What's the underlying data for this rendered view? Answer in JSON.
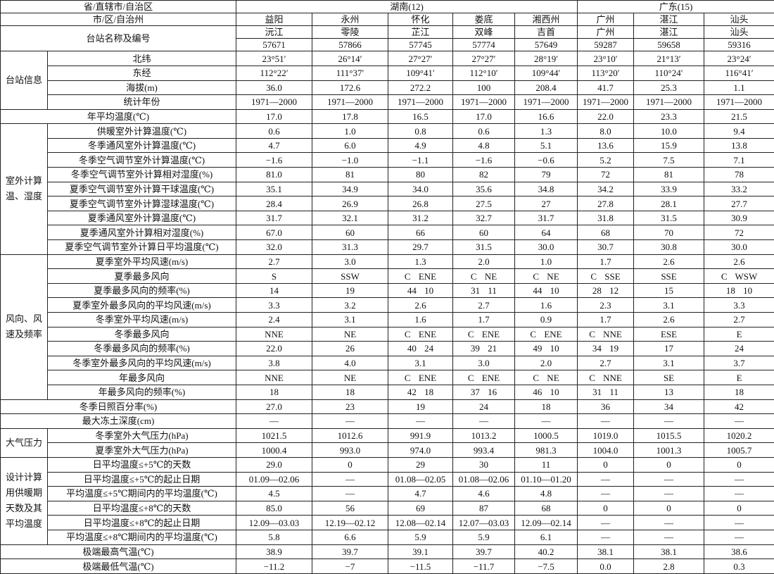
{
  "header": {
    "province_label": "省/直辖市/自治区",
    "city_label": "市/区/自治州",
    "station_label": "台站名称及编号"
  },
  "provinces": [
    {
      "name": "湖南(12)",
      "columns": [
        {
          "city": "益阳",
          "station": "沅江",
          "id": "57671"
        },
        {
          "city": "永州",
          "station": "零陵",
          "id": "57866"
        },
        {
          "city": "怀化",
          "station": "芷江",
          "id": "57745"
        },
        {
          "city": "娄底",
          "station": "双峰",
          "id": "57774"
        },
        {
          "city": "湘西州",
          "station": "吉首",
          "id": "57649"
        }
      ]
    },
    {
      "name": "广东(15)",
      "columns": [
        {
          "city": "广州",
          "station": "广州",
          "id": "59287"
        },
        {
          "city": "湛江",
          "station": "湛江",
          "id": "59658"
        },
        {
          "city": "汕头",
          "station": "汕头",
          "id": "59316"
        }
      ]
    }
  ],
  "sections": [
    {
      "label": "台站信息",
      "rows": [
        {
          "label": "北纬",
          "values": [
            "23°51′",
            "26°14′",
            "27°27′",
            "27°27′",
            "28°19′",
            "23°10′",
            "21°13′",
            "23°24′"
          ]
        },
        {
          "label": "东经",
          "values": [
            "112°22′",
            "111°37′",
            "109°41′",
            "112°10′",
            "109°44′",
            "113°20′",
            "110°24′",
            "116°41′"
          ]
        },
        {
          "label": "海拔(m)",
          "values": [
            "36.0",
            "172.6",
            "272.2",
            "100",
            "208.4",
            "41.7",
            "25.3",
            "1.1"
          ]
        },
        {
          "label": "统计年份",
          "values": [
            "1971—2000",
            "1971—2000",
            "1971—2000",
            "1971—2000",
            "1971—2000",
            "1971—2000",
            "1971—2000",
            "1971—2000"
          ]
        }
      ]
    },
    {
      "rows": [
        {
          "label": "年平均温度(℃)",
          "values": [
            "17.0",
            "17.8",
            "16.5",
            "17.0",
            "16.6",
            "22.0",
            "23.3",
            "21.5"
          ]
        }
      ]
    },
    {
      "label": "室外计算温、湿度",
      "rows": [
        {
          "label": "供暖室外计算温度(℃)",
          "values": [
            "0.6",
            "1.0",
            "0.8",
            "0.6",
            "1.3",
            "8.0",
            "10.0",
            "9.4"
          ]
        },
        {
          "label": "冬季通风室外计算温度(℃)",
          "values": [
            "4.7",
            "6.0",
            "4.9",
            "4.8",
            "5.1",
            "13.6",
            "15.9",
            "13.8"
          ]
        },
        {
          "label": "冬季空气调节室外计算温度(℃)",
          "values": [
            "−1.6",
            "−1.0",
            "−1.1",
            "−1.6",
            "−0.6",
            "5.2",
            "7.5",
            "7.1"
          ]
        },
        {
          "label": "冬季空气调节室外计算相对湿度(%)",
          "values": [
            "81.0",
            "81",
            "80",
            "82",
            "79",
            "72",
            "81",
            "78"
          ]
        },
        {
          "label": "夏季空气调节室外计算干球温度(℃)",
          "values": [
            "35.1",
            "34.9",
            "34.0",
            "35.6",
            "34.8",
            "34.2",
            "33.9",
            "33.2"
          ]
        },
        {
          "label": "夏季空气调节室外计算湿球温度(℃)",
          "values": [
            "28.4",
            "26.9",
            "26.8",
            "27.5",
            "27",
            "27.8",
            "28.1",
            "27.7"
          ]
        },
        {
          "label": "夏季通风室外计算温度(℃)",
          "values": [
            "31.7",
            "32.1",
            "31.2",
            "32.7",
            "31.7",
            "31.8",
            "31.5",
            "30.9"
          ]
        },
        {
          "label": "夏季通风室外计算相对湿度(%)",
          "values": [
            "67.0",
            "60",
            "66",
            "60",
            "64",
            "68",
            "70",
            "72"
          ]
        },
        {
          "label": "夏季空气调节室外计算日平均温度(℃)",
          "values": [
            "32.0",
            "31.3",
            "29.7",
            "31.5",
            "30.0",
            "30.7",
            "30.8",
            "30.0"
          ]
        }
      ]
    },
    {
      "label": "风向、风速及频率",
      "rows": [
        {
          "label": "夏季室外平均风速(m/s)",
          "values": [
            "2.7",
            "3.0",
            "1.3",
            "2.0",
            "1.0",
            "1.7",
            "2.6",
            "2.6"
          ]
        },
        {
          "label": "夏季最多风向",
          "values": [
            "S",
            "SSW",
            "C ENE",
            "C NE",
            "C NE",
            "C SSE",
            "SSE",
            "C WSW"
          ]
        },
        {
          "label": "夏季最多风向的频率(%)",
          "values": [
            "14",
            "19",
            "44 10",
            "31 11",
            "44 10",
            "28 12",
            "15",
            "18 10"
          ]
        },
        {
          "label": "夏季室外最多风向的平均风速(m/s)",
          "values": [
            "3.3",
            "3.2",
            "2.6",
            "2.7",
            "1.6",
            "2.3",
            "3.1",
            "3.3"
          ]
        },
        {
          "label": "冬季室外平均风速(m/s)",
          "values": [
            "2.4",
            "3.1",
            "1.6",
            "1.7",
            "0.9",
            "1.7",
            "2.6",
            "2.7"
          ]
        },
        {
          "label": "冬季最多风向",
          "values": [
            "NNE",
            "NE",
            "C ENE",
            "C ENE",
            "C ENE",
            "C NNE",
            "ESE",
            "E"
          ]
        },
        {
          "label": "冬季最多风向的频率(%)",
          "values": [
            "22.0",
            "26",
            "40 24",
            "39 21",
            "49 10",
            "34 19",
            "17",
            "24"
          ]
        },
        {
          "label": "冬季室外最多风向的平均风速(m/s)",
          "values": [
            "3.8",
            "4.0",
            "3.1",
            "3.0",
            "2.0",
            "2.7",
            "3.1",
            "3.7"
          ]
        },
        {
          "label": "年最多风向",
          "values": [
            "NNE",
            "NE",
            "C ENE",
            "C ENE",
            "C NE",
            "C NNE",
            "SE",
            "E"
          ]
        },
        {
          "label": "年最多风向的频率(%)",
          "values": [
            "18",
            "18",
            "42 18",
            "37 16",
            "46 10",
            "31 11",
            "13",
            "18"
          ]
        }
      ]
    },
    {
      "rows": [
        {
          "label": "冬季日照百分率(%)",
          "values": [
            "27.0",
            "23",
            "19",
            "24",
            "18",
            "36",
            "34",
            "42"
          ]
        },
        {
          "label": "最大冻土深度(cm)",
          "values": [
            "—",
            "—",
            "—",
            "—",
            "—",
            "—",
            "—",
            "—"
          ]
        }
      ]
    },
    {
      "label": "大气压力",
      "rows": [
        {
          "label": "冬季室外大气压力(hPa)",
          "values": [
            "1021.5",
            "1012.6",
            "991.9",
            "1013.2",
            "1000.5",
            "1019.0",
            "1015.5",
            "1020.2"
          ]
        },
        {
          "label": "夏季室外大气压力(hPa)",
          "values": [
            "1000.4",
            "993.0",
            "974.0",
            "993.4",
            "981.3",
            "1004.0",
            "1001.3",
            "1005.7"
          ]
        }
      ]
    },
    {
      "label": "设计计算用供暖期天数及其平均温度",
      "rows": [
        {
          "label": "日平均温度≤+5℃的天数",
          "values": [
            "29.0",
            "0",
            "29",
            "30",
            "11",
            "0",
            "0",
            "0"
          ]
        },
        {
          "label": "日平均温度≤+5℃的起止日期",
          "values": [
            "01.09—02.06",
            "—",
            "01.08—02.05",
            "01.08—02.06",
            "01.10—01.20",
            "—",
            "—",
            "—"
          ]
        },
        {
          "label": "平均温度≤+5℃期间内的平均温度(℃)",
          "values": [
            "4.5",
            "—",
            "4.7",
            "4.6",
            "4.8",
            "—",
            "—",
            "—"
          ]
        },
        {
          "label": "日平均温度≤+8℃的天数",
          "values": [
            "85.0",
            "56",
            "69",
            "87",
            "68",
            "0",
            "0",
            "0"
          ]
        },
        {
          "label": "日平均温度≤+8℃的起止日期",
          "values": [
            "12.09—03.03",
            "12.19—02.12",
            "12.08—02.14",
            "12.07—03.03",
            "12.09—02.14",
            "—",
            "—",
            "—"
          ]
        },
        {
          "label": "平均温度≤+8℃期间内的平均温度(℃)",
          "values": [
            "5.8",
            "6.6",
            "5.9",
            "5.9",
            "6.1",
            "—",
            "—",
            "—"
          ]
        }
      ]
    },
    {
      "rows": [
        {
          "label": "极端最高气温(℃)",
          "values": [
            "38.9",
            "39.7",
            "39.1",
            "39.7",
            "40.2",
            "38.1",
            "38.1",
            "38.6"
          ]
        },
        {
          "label": "极端最低气温(℃)",
          "values": [
            "−11.2",
            "−7",
            "−11.5",
            "−11.7",
            "−7.5",
            "0.0",
            "2.8",
            "0.3"
          ]
        }
      ]
    }
  ]
}
